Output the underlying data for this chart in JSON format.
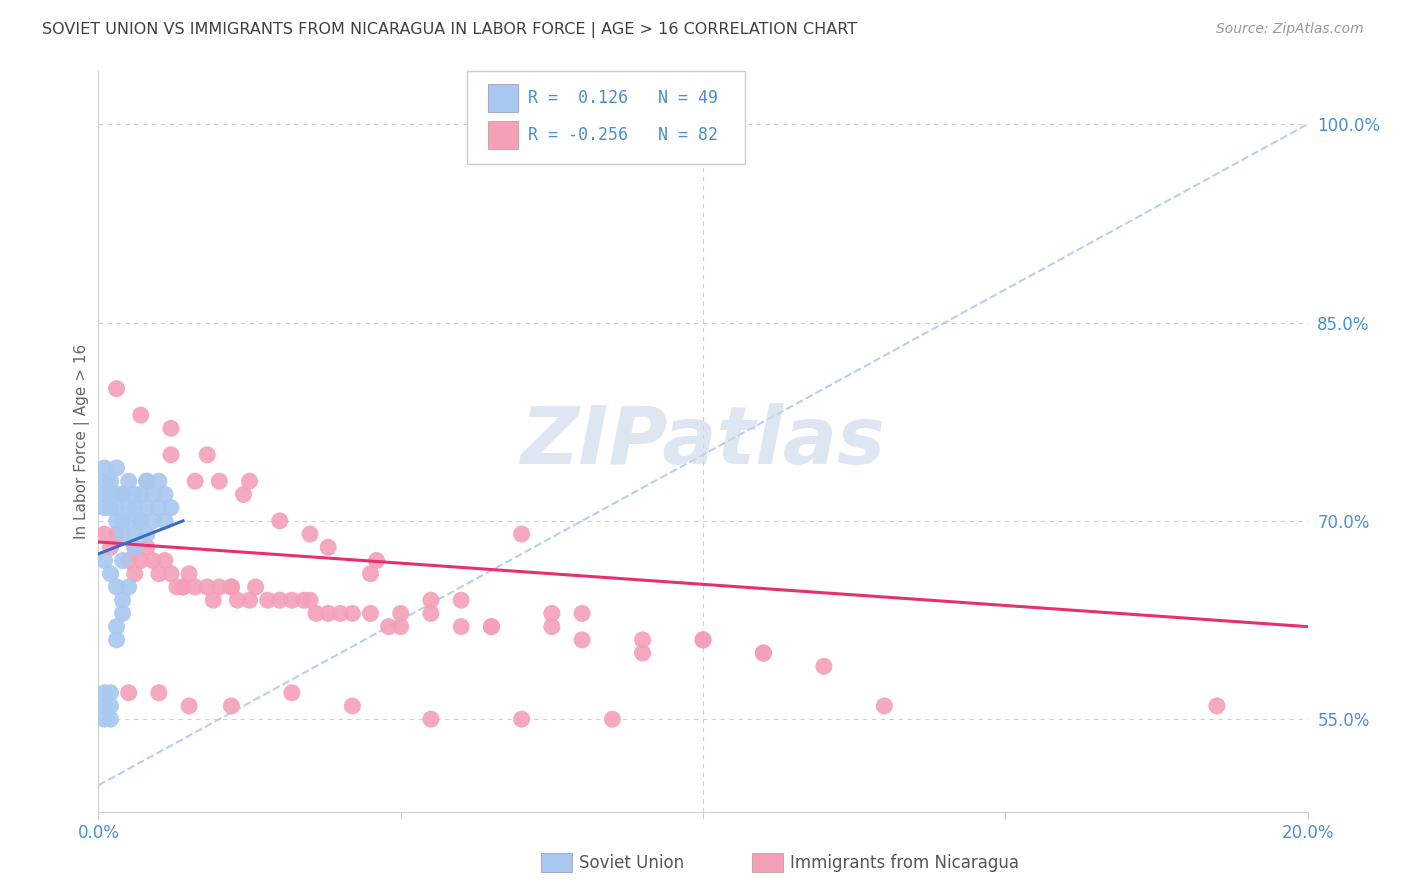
{
  "title": "SOVIET UNION VS IMMIGRANTS FROM NICARAGUA IN LABOR FORCE | AGE > 16 CORRELATION CHART",
  "source": "Source: ZipAtlas.com",
  "ylabel": "In Labor Force | Age > 16",
  "xlim": [
    0.0,
    0.2
  ],
  "ylim": [
    0.48,
    1.04
  ],
  "yticks": [
    0.55,
    0.7,
    0.85,
    1.0
  ],
  "ytick_labels": [
    "55.0%",
    "70.0%",
    "85.0%",
    "100.0%"
  ],
  "xticks": [
    0.0,
    0.05,
    0.1,
    0.15,
    0.2
  ],
  "xtick_labels": [
    "0.0%",
    "",
    "",
    "",
    "20.0%"
  ],
  "blue_R": 0.126,
  "blue_N": 49,
  "pink_R": -0.256,
  "pink_N": 82,
  "blue_color": "#a8c8f0",
  "pink_color": "#f4a0b8",
  "blue_line_color": "#3a6bc8",
  "pink_line_color": "#e83070",
  "dashed_line_color": "#a8c8f0",
  "grid_color": "#d0d0d0",
  "title_color": "#404040",
  "right_label_color": "#4a90d0",
  "watermark_color": "#c8d8e8",
  "blue_scatter_x": [
    0.001,
    0.001,
    0.001,
    0.001,
    0.002,
    0.002,
    0.002,
    0.003,
    0.003,
    0.003,
    0.003,
    0.004,
    0.004,
    0.004,
    0.005,
    0.005,
    0.005,
    0.006,
    0.006,
    0.006,
    0.007,
    0.007,
    0.008,
    0.008,
    0.009,
    0.009,
    0.01,
    0.01,
    0.011,
    0.011,
    0.012,
    0.001,
    0.001,
    0.001,
    0.002,
    0.002,
    0.002,
    0.003,
    0.003,
    0.004,
    0.004,
    0.005,
    0.006,
    0.007,
    0.008,
    0.001,
    0.002,
    0.003,
    0.004
  ],
  "blue_scatter_y": [
    0.74,
    0.73,
    0.72,
    0.71,
    0.73,
    0.72,
    0.71,
    0.74,
    0.72,
    0.71,
    0.7,
    0.72,
    0.7,
    0.69,
    0.73,
    0.71,
    0.7,
    0.72,
    0.71,
    0.69,
    0.72,
    0.7,
    0.71,
    0.69,
    0.72,
    0.7,
    0.73,
    0.71,
    0.72,
    0.7,
    0.71,
    0.57,
    0.56,
    0.55,
    0.57,
    0.56,
    0.55,
    0.62,
    0.61,
    0.64,
    0.63,
    0.65,
    0.68,
    0.7,
    0.73,
    0.67,
    0.66,
    0.65,
    0.67
  ],
  "pink_scatter_x": [
    0.001,
    0.002,
    0.003,
    0.005,
    0.006,
    0.007,
    0.008,
    0.009,
    0.01,
    0.011,
    0.012,
    0.013,
    0.014,
    0.015,
    0.016,
    0.018,
    0.019,
    0.02,
    0.022,
    0.023,
    0.025,
    0.026,
    0.028,
    0.03,
    0.032,
    0.034,
    0.036,
    0.038,
    0.04,
    0.042,
    0.045,
    0.048,
    0.05,
    0.055,
    0.06,
    0.065,
    0.07,
    0.075,
    0.08,
    0.09,
    0.1,
    0.11,
    0.12,
    0.13,
    0.185,
    0.004,
    0.008,
    0.012,
    0.016,
    0.02,
    0.024,
    0.03,
    0.038,
    0.046,
    0.055,
    0.065,
    0.075,
    0.09,
    0.11,
    0.003,
    0.007,
    0.012,
    0.018,
    0.025,
    0.035,
    0.045,
    0.06,
    0.08,
    0.1,
    0.005,
    0.01,
    0.015,
    0.022,
    0.032,
    0.042,
    0.055,
    0.07,
    0.085,
    0.006,
    0.014,
    0.022,
    0.035,
    0.05
  ],
  "pink_scatter_y": [
    0.69,
    0.68,
    0.69,
    0.67,
    0.68,
    0.67,
    0.68,
    0.67,
    0.66,
    0.67,
    0.66,
    0.65,
    0.65,
    0.66,
    0.65,
    0.65,
    0.64,
    0.65,
    0.65,
    0.64,
    0.64,
    0.65,
    0.64,
    0.64,
    0.64,
    0.64,
    0.63,
    0.63,
    0.63,
    0.63,
    0.63,
    0.62,
    0.62,
    0.63,
    0.62,
    0.62,
    0.69,
    0.63,
    0.61,
    0.6,
    0.61,
    0.6,
    0.59,
    0.56,
    0.56,
    0.72,
    0.73,
    0.75,
    0.73,
    0.73,
    0.72,
    0.7,
    0.68,
    0.67,
    0.64,
    0.62,
    0.62,
    0.61,
    0.6,
    0.8,
    0.78,
    0.77,
    0.75,
    0.73,
    0.69,
    0.66,
    0.64,
    0.63,
    0.61,
    0.57,
    0.57,
    0.56,
    0.56,
    0.57,
    0.56,
    0.55,
    0.55,
    0.55,
    0.66,
    0.65,
    0.65,
    0.64,
    0.63
  ],
  "blue_trend_x": [
    0.0,
    0.014
  ],
  "blue_trend_y": [
    0.675,
    0.7
  ],
  "pink_trend_x": [
    0.0,
    0.2
  ],
  "pink_trend_y": [
    0.684,
    0.62
  ],
  "dashed_trend_x": [
    0.0,
    0.2
  ],
  "dashed_trend_y": [
    0.5,
    1.0
  ]
}
